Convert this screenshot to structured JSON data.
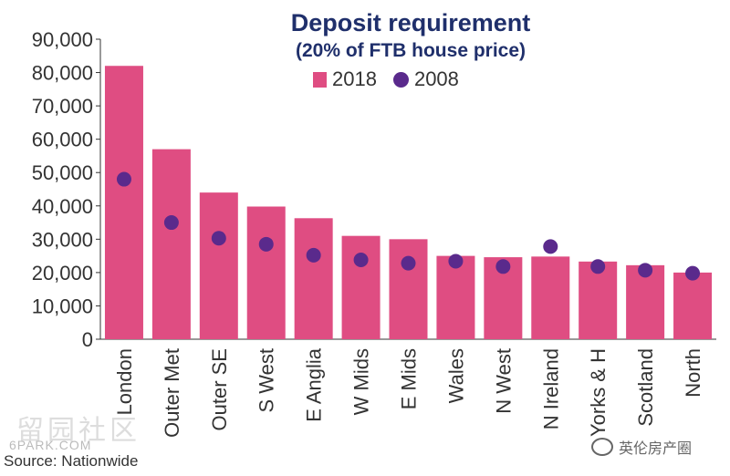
{
  "chart_data": {
    "type": "bar",
    "title": "Deposit requirement",
    "subtitle": "(20% of FTB house price)",
    "categories": [
      "London",
      "Outer Met",
      "Outer SE",
      "S West",
      "E Anglia",
      "W Mids",
      "E Mids",
      "Wales",
      "N West",
      "N Ireland",
      "Yorks & H",
      "Scotland",
      "North"
    ],
    "series": [
      {
        "name": "2018",
        "kind": "bar",
        "color": "#df4d82",
        "values": [
          82000,
          57000,
          44000,
          39800,
          36300,
          31000,
          30000,
          25000,
          24600,
          24800,
          23300,
          22200,
          20000
        ]
      },
      {
        "name": "2008",
        "kind": "dot",
        "color": "#5a2a8c",
        "values": [
          48000,
          35000,
          30300,
          28500,
          25200,
          23800,
          22800,
          23400,
          21800,
          27800,
          21800,
          20700,
          19800
        ]
      }
    ],
    "yticks": [
      "0",
      "10,000",
      "20,000",
      "30,000",
      "40,000",
      "50,000",
      "60,000",
      "70,000",
      "80,000",
      "90,000"
    ],
    "ylim": [
      0,
      90000
    ],
    "legend_position": "top-center",
    "grid": false
  },
  "source": "Source: Nationwide",
  "watermarks": {
    "left": "留园社区",
    "left_sub": "6PARK.COM",
    "right": "英伦房产圈"
  }
}
